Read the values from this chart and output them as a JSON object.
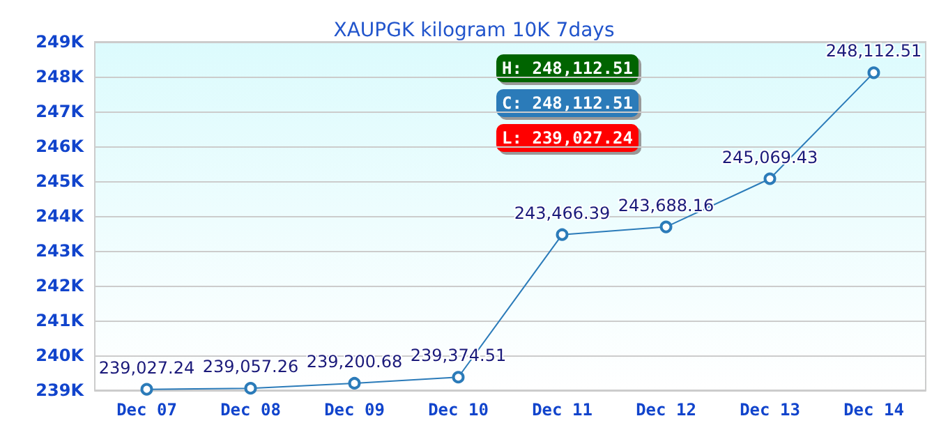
{
  "chart_data": {
    "type": "line",
    "title": "XAUPGK kilogram 10K 7days",
    "categories": [
      "Dec 07",
      "Dec 08",
      "Dec 09",
      "Dec 10",
      "Dec 11",
      "Dec 12",
      "Dec 13",
      "Dec 14"
    ],
    "series": [
      {
        "color": "#2b7bb9",
        "values": [
          239027.24,
          239057.26,
          239200.68,
          239374.51,
          243466.39,
          243688.16,
          245069.43,
          248112.51
        ],
        "value_labels": [
          "239,027.24",
          "239,057.26",
          "239,200.68",
          "239,374.51",
          "243,466.39",
          "243,688.16",
          "245,069.43",
          "248,112.51"
        ]
      }
    ],
    "ylim": [
      239000,
      249000
    ],
    "yticks": [
      {
        "value": 239000,
        "label": "239K"
      },
      {
        "value": 240000,
        "label": "240K"
      },
      {
        "value": 241000,
        "label": "241K"
      },
      {
        "value": 242000,
        "label": "242K"
      },
      {
        "value": 243000,
        "label": "243K"
      },
      {
        "value": 244000,
        "label": "244K"
      },
      {
        "value": 245000,
        "label": "245K"
      },
      {
        "value": 246000,
        "label": "246K"
      },
      {
        "value": 247000,
        "label": "247K"
      },
      {
        "value": 248000,
        "label": "248K"
      },
      {
        "value": 249000,
        "label": "249K"
      }
    ],
    "annotations": [
      "H: 248,112.51",
      "C: 248,112.51",
      "L: 239,027.24"
    ],
    "grid": "y",
    "marker": "circle",
    "line_style": "solid"
  }
}
